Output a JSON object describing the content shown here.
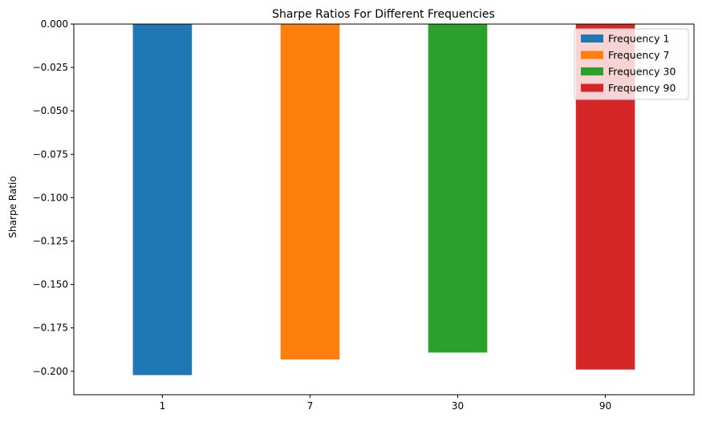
{
  "chart_data": {
    "type": "bar",
    "title": "Sharpe Ratios For Different Frequencies",
    "xlabel": "",
    "ylabel": "Sharpe Ratio",
    "categories": [
      "1",
      "7",
      "30",
      "90"
    ],
    "values": [
      -0.2022,
      -0.1932,
      -0.1892,
      -0.199
    ],
    "ylim": [
      -0.2135,
      0.0
    ],
    "yticks": [
      0.0,
      -0.025,
      -0.05,
      -0.075,
      -0.1,
      -0.125,
      -0.15,
      -0.175,
      -0.2
    ],
    "ytick_labels": [
      "0.000",
      "−0.025",
      "−0.050",
      "−0.075",
      "−0.100",
      "−0.125",
      "−0.150",
      "−0.175",
      "−0.200"
    ],
    "legend": {
      "placement": "top-right",
      "entries": [
        "Frequency 1",
        "Frequency 7",
        "Frequency 30",
        "Frequency 90"
      ]
    },
    "colors": [
      "#1f77b4",
      "#ff7f0e",
      "#2ca02c",
      "#d62728"
    ],
    "grid": false
  }
}
